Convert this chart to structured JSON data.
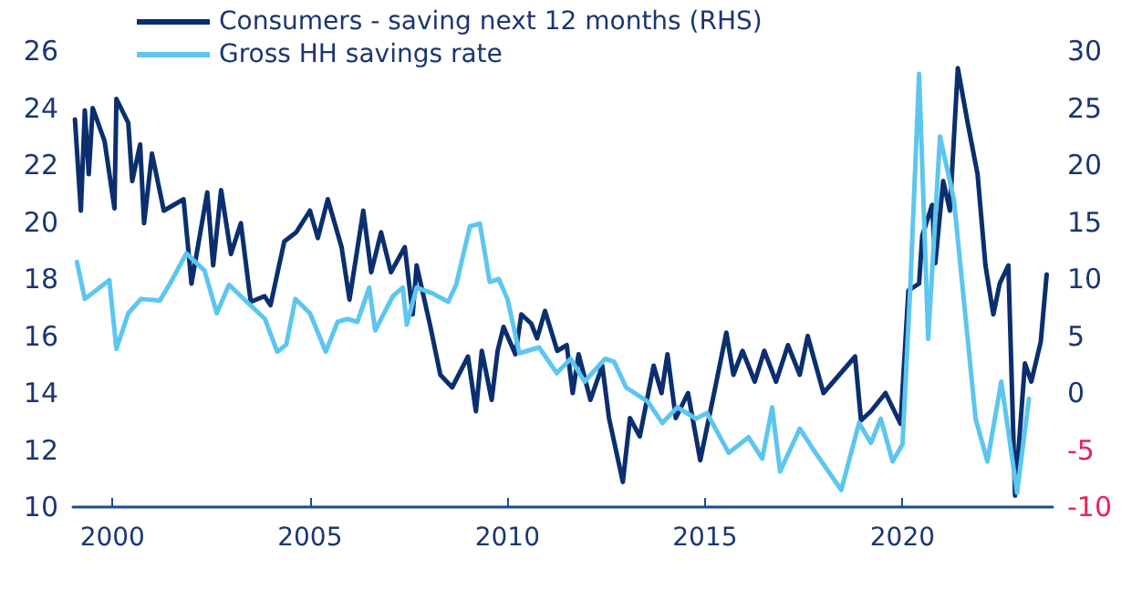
{
  "chart_data": {
    "type": "line",
    "legend": "top left",
    "grid": false,
    "marker": "none",
    "line_style": "solid",
    "xlim": [
      1999,
      2023.8
    ],
    "xticks": [
      2000,
      2005,
      2010,
      2015,
      2020
    ],
    "ylim": [
      10,
      26
    ],
    "yticks": [
      10,
      12,
      14,
      16,
      18,
      20,
      22,
      24,
      26
    ],
    "y2lim": [
      -10,
      30
    ],
    "y2ticks": [
      -10,
      -5,
      0,
      5,
      10,
      15,
      20,
      25,
      30
    ],
    "series": [
      {
        "name": "Consumers - saving next 12 months (RHS)",
        "color": "#0b2f6e",
        "axis": "y2",
        "x": [
          1999.05,
          1999.2,
          1999.3,
          1999.4,
          1999.5,
          1999.8,
          2000.05,
          2000.1,
          2000.4,
          2000.5,
          2000.7,
          2000.8,
          2001.0,
          2001.3,
          2001.8,
          2002.0,
          2002.4,
          2002.55,
          2002.75,
          2003.0,
          2003.25,
          2003.5,
          2003.85,
          2004.0,
          2004.35,
          2004.65,
          2005.0,
          2005.2,
          2005.45,
          2005.8,
          2006.0,
          2006.35,
          2006.55,
          2006.8,
          2007.05,
          2007.4,
          2007.6,
          2007.7,
          2008.05,
          2008.3,
          2008.6,
          2009.0,
          2009.2,
          2009.35,
          2009.6,
          2009.75,
          2009.9,
          2010.2,
          2010.35,
          2010.6,
          2010.75,
          2010.95,
          2011.26,
          2011.5,
          2011.65,
          2011.8,
          2012.1,
          2012.4,
          2012.57,
          2012.92,
          2013.1,
          2013.35,
          2013.7,
          2013.9,
          2014.05,
          2014.26,
          2014.57,
          2014.88,
          2015.26,
          2015.54,
          2015.72,
          2015.95,
          2016.26,
          2016.5,
          2016.8,
          2017.1,
          2017.4,
          2017.6,
          2018.0,
          2018.4,
          2018.8,
          2018.95,
          2019.2,
          2019.57,
          2019.95,
          2020.15,
          2020.42,
          2020.5,
          2020.75,
          2020.83,
          2021.03,
          2021.2,
          2021.4,
          2021.65,
          2021.9,
          2022.1,
          2022.3,
          2022.46,
          2022.68,
          2022.85,
          2023.1,
          2023.26,
          2023.5,
          2023.65
        ],
        "values": [
          24.0,
          16.0,
          24.8,
          19.2,
          25.0,
          22.1,
          16.2,
          25.8,
          23.7,
          18.6,
          21.8,
          14.9,
          21.0,
          16.0,
          17.0,
          9.6,
          17.6,
          11.2,
          17.8,
          12.2,
          14.9,
          8.0,
          8.5,
          7.7,
          13.3,
          14.1,
          16.0,
          13.6,
          17.0,
          12.8,
          8.2,
          16.0,
          10.6,
          14.1,
          10.6,
          12.8,
          6.9,
          11.2,
          5.8,
          1.6,
          0.5,
          3.2,
          -1.6,
          3.7,
          -0.6,
          3.7,
          5.8,
          3.4,
          6.9,
          6.1,
          4.8,
          7.2,
          3.7,
          4.2,
          0.0,
          3.4,
          -0.6,
          2.4,
          -2.2,
          -7.8,
          -2.2,
          -3.8,
          2.4,
          0.0,
          3.4,
          -2.2,
          0.0,
          -5.9,
          0.5,
          5.3,
          1.6,
          3.7,
          1.0,
          3.7,
          1.0,
          4.2,
          1.6,
          5.0,
          0.0,
          1.6,
          3.2,
          -2.4,
          -1.6,
          0.0,
          -2.7,
          9.0,
          9.6,
          13.8,
          16.5,
          11.4,
          18.6,
          16.0,
          28.5,
          23.7,
          19.2,
          11.2,
          6.9,
          9.6,
          11.2,
          -9.0,
          2.6,
          1.0,
          4.5,
          10.4
        ]
      },
      {
        "name": "Gross HH savings rate",
        "color": "#5cc6ee",
        "x": [
          1999.1,
          1999.3,
          1999.92,
          2000.1,
          2000.4,
          2000.72,
          2001.2,
          2001.48,
          2001.87,
          2002.33,
          2002.64,
          2002.95,
          2003.25,
          2003.86,
          2004.17,
          2004.4,
          2004.63,
          2005.0,
          2005.4,
          2005.7,
          2005.95,
          2006.2,
          2006.5,
          2006.65,
          2007.1,
          2007.35,
          2007.45,
          2007.7,
          2008.1,
          2008.5,
          2008.7,
          2009.05,
          2009.3,
          2009.55,
          2009.78,
          2010.0,
          2010.3,
          2010.8,
          2011.25,
          2011.6,
          2011.95,
          2012.47,
          2012.7,
          2013.0,
          2013.55,
          2013.92,
          2014.3,
          2014.77,
          2015.05,
          2015.6,
          2016.1,
          2016.45,
          2016.7,
          2016.9,
          2017.4,
          2017.8,
          2018.45,
          2018.9,
          2019.2,
          2019.45,
          2019.75,
          2020.0,
          2020.2,
          2020.42,
          2020.65,
          2020.95,
          2021.3,
          2021.85,
          2022.15,
          2022.5,
          2022.9,
          2023.2
        ],
        "values": [
          18.6,
          17.3,
          17.96,
          15.55,
          16.8,
          17.3,
          17.25,
          17.9,
          18.9,
          18.3,
          16.8,
          17.8,
          17.4,
          16.6,
          15.45,
          15.7,
          17.3,
          16.8,
          15.45,
          16.5,
          16.6,
          16.5,
          17.7,
          16.2,
          17.4,
          17.7,
          16.4,
          17.7,
          17.5,
          17.2,
          17.8,
          19.85,
          19.95,
          17.9,
          18.0,
          17.3,
          15.4,
          15.6,
          14.7,
          15.2,
          14.4,
          15.2,
          15.1,
          14.2,
          13.7,
          12.95,
          13.5,
          13.1,
          13.3,
          11.9,
          12.45,
          11.7,
          13.5,
          11.25,
          12.75,
          11.9,
          10.6,
          12.95,
          12.25,
          13.1,
          11.6,
          12.2,
          17.8,
          25.2,
          15.9,
          23.0,
          20.8,
          13.1,
          11.6,
          14.4,
          10.5,
          13.8
        ]
      }
    ]
  }
}
